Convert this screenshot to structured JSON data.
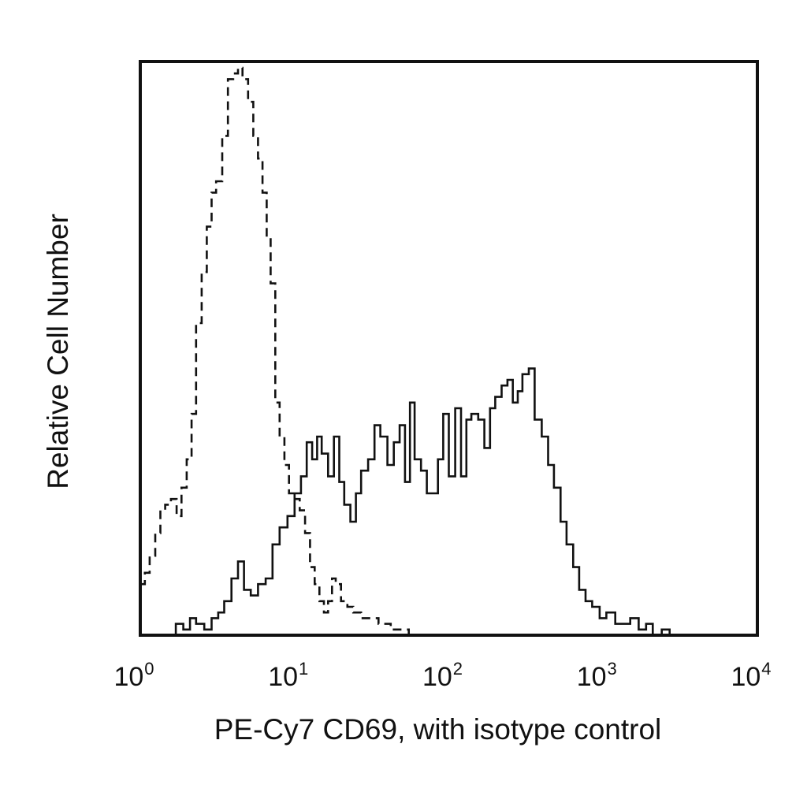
{
  "chart_data": {
    "type": "line",
    "title": "",
    "xlabel": "PE-Cy7 CD69, with isotype control",
    "ylabel": "Relative Cell Number",
    "xscale": "log",
    "xlim": [
      1,
      10000
    ],
    "ylim": [
      0,
      100
    ],
    "grid": false,
    "legend": "none",
    "ticks": [
      {
        "base": "10",
        "exp": "0",
        "value": 1
      },
      {
        "base": "10",
        "exp": "1",
        "value": 10
      },
      {
        "base": "10",
        "exp": "2",
        "value": 100
      },
      {
        "base": "10",
        "exp": "3",
        "value": 1000
      },
      {
        "base": "10",
        "exp": "4",
        "value": 10000
      }
    ],
    "series": [
      {
        "style": "dashed",
        "color": "#111111",
        "x": [
          1.0,
          1.07,
          1.15,
          1.25,
          1.35,
          1.45,
          1.58,
          1.72,
          1.85,
          2.0,
          2.15,
          2.3,
          2.5,
          2.7,
          2.9,
          3.1,
          3.4,
          3.7,
          4.0,
          4.3,
          4.6,
          5.0,
          5.4,
          5.8,
          6.2,
          6.6,
          7.0,
          7.5,
          8.0,
          8.6,
          9.2,
          10.0,
          10.8,
          11.7,
          12.6,
          13.5,
          14.5,
          15.5,
          16.5,
          17.5,
          18.5,
          20.0,
          22.0,
          24.0,
          27.0,
          30.0,
          35.0,
          42.0,
          55.0,
          80.0,
          150.0,
          400.0,
          1000.0,
          3000.0,
          10000.0
        ],
        "y": [
          9,
          11,
          14,
          18,
          22,
          23,
          24,
          21,
          26,
          31,
          39,
          55,
          64,
          72,
          78,
          80,
          88,
          98,
          99,
          100,
          98,
          94,
          88,
          84,
          78,
          70,
          62,
          41,
          35,
          30,
          25,
          24,
          22,
          18,
          12,
          9,
          6,
          4,
          6,
          10,
          9,
          6,
          5,
          4,
          3,
          3,
          2,
          1,
          0,
          0,
          0,
          0,
          0,
          0,
          0
        ]
      },
      {
        "style": "solid",
        "color": "#111111",
        "x": [
          1.0,
          1.5,
          1.7,
          1.9,
          2.1,
          2.3,
          2.6,
          2.9,
          3.2,
          3.5,
          3.9,
          4.3,
          4.7,
          5.2,
          5.8,
          6.5,
          7.2,
          8.0,
          9.0,
          10.0,
          11.0,
          12.0,
          13.0,
          14.0,
          15.0,
          16.5,
          18.0,
          19.5,
          21.0,
          23.0,
          25.0,
          27.0,
          30.0,
          33.0,
          36.0,
          40.0,
          44.0,
          48.0,
          52.0,
          56.0,
          60.0,
          66.0,
          72.0,
          78.0,
          85.0,
          92.0,
          100.0,
          110.0,
          120.0,
          130.0,
          140.0,
          155.0,
          170.0,
          185.0,
          200.0,
          220.0,
          240.0,
          260.0,
          280.0,
          300.0,
          330.0,
          360.0,
          400.0,
          440.0,
          480.0,
          530.0,
          580.0,
          640.0,
          700.0,
          770.0,
          850.0,
          950.0,
          1050.0,
          1200.0,
          1350.0,
          1500.0,
          1700.0,
          1900.0,
          2100.0,
          2400.0,
          2700.0,
          3000.0,
          4000.0,
          10000.0
        ],
        "y": [
          0,
          0,
          2,
          1,
          3,
          2,
          1,
          3,
          4,
          6,
          10,
          13,
          8,
          7,
          9,
          10,
          16,
          19,
          21,
          25,
          28,
          34,
          31,
          35,
          32,
          28,
          35,
          27,
          23,
          20,
          25,
          29,
          31,
          37,
          35,
          30,
          34,
          37,
          27,
          41,
          31,
          29,
          25,
          25,
          31,
          39,
          28,
          40,
          28,
          38,
          39,
          38,
          33,
          40,
          42,
          44,
          45,
          41,
          43,
          46,
          47,
          38,
          35,
          30,
          26,
          20,
          16,
          12,
          8,
          6,
          5,
          3,
          4,
          2,
          2,
          3,
          1,
          2,
          0,
          1,
          0,
          0,
          0,
          0
        ]
      }
    ]
  }
}
